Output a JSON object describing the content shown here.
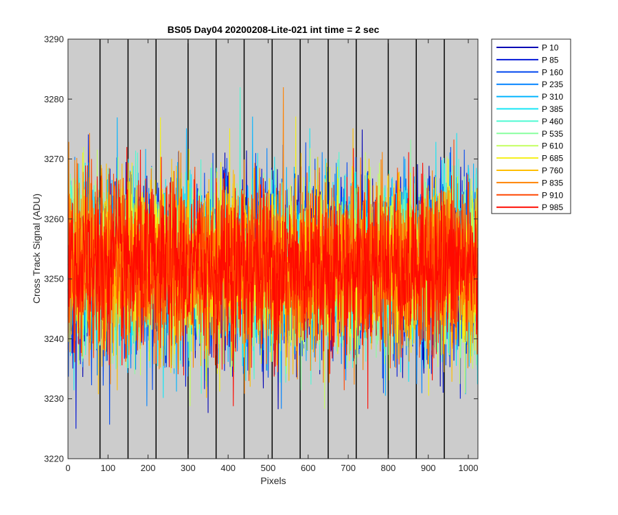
{
  "chart_data": {
    "type": "line",
    "title": "BS05 Day04 20200208-Lite-021 int time = 2 sec",
    "xlabel": "Pixels",
    "ylabel": "Cross Track Signal (ADU)",
    "xlim": [
      0,
      1024
    ],
    "ylim": [
      3220,
      3290
    ],
    "xticks": [
      0,
      100,
      200,
      300,
      400,
      500,
      600,
      700,
      800,
      900,
      1000
    ],
    "yticks": [
      3220,
      3230,
      3240,
      3250,
      3260,
      3270,
      3280,
      3290
    ],
    "vertical_lines_x": [
      80,
      150,
      220,
      300,
      370,
      440,
      510,
      580,
      650,
      720,
      800,
      870,
      940
    ],
    "background_color": "#cccccc",
    "legend_position": "outside-top-right",
    "series": [
      {
        "name": "P 10",
        "color": "#0000b4"
      },
      {
        "name": "P 85",
        "color": "#0014d7"
      },
      {
        "name": "P 160",
        "color": "#0047ef"
      },
      {
        "name": "P 235",
        "color": "#0082ff"
      },
      {
        "name": "P 310",
        "color": "#00b4ff"
      },
      {
        "name": "P 385",
        "color": "#14e6f5"
      },
      {
        "name": "P 460",
        "color": "#4dfad2"
      },
      {
        "name": "P 535",
        "color": "#87ff9e"
      },
      {
        "name": "P 610",
        "color": "#c3ff5f"
      },
      {
        "name": "P 685",
        "color": "#f5f014"
      },
      {
        "name": "P 760",
        "color": "#ffbe00"
      },
      {
        "name": "P 835",
        "color": "#ff8200"
      },
      {
        "name": "P 910",
        "color": "#ff4600"
      },
      {
        "name": "P 985",
        "color": "#ff0a00"
      }
    ],
    "series_noise": {
      "mean": 3252,
      "spread_typical": 7,
      "min_observed": 3225,
      "max_observed": 3283
    }
  }
}
